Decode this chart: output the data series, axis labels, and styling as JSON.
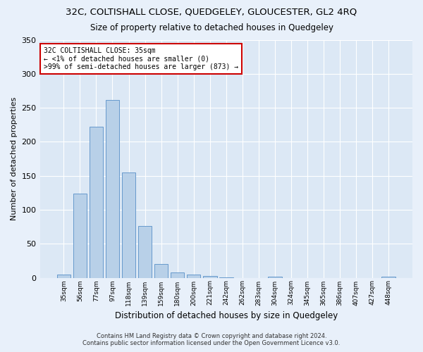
{
  "title": "32C, COLTISHALL CLOSE, QUEDGELEY, GLOUCESTER, GL2 4RQ",
  "subtitle": "Size of property relative to detached houses in Quedgeley",
  "xlabel": "Distribution of detached houses by size in Quedgeley",
  "ylabel": "Number of detached properties",
  "bar_color": "#b8d0e8",
  "bar_edge_color": "#6699cc",
  "background_color": "#dce8f5",
  "fig_background_color": "#e8f0fa",
  "grid_color": "#ffffff",
  "annotation_box_edgecolor": "#cc0000",
  "annotation_text_line1": "32C COLTISHALL CLOSE: 35sqm",
  "annotation_text_line2": "← <1% of detached houses are smaller (0)",
  "annotation_text_line3": ">99% of semi-detached houses are larger (873) →",
  "footnote1": "Contains HM Land Registry data © Crown copyright and database right 2024.",
  "footnote2": "Contains public sector information licensed under the Open Government Licence v3.0.",
  "bins": [
    "35sqm",
    "56sqm",
    "77sqm",
    "97sqm",
    "118sqm",
    "139sqm",
    "159sqm",
    "180sqm",
    "200sqm",
    "221sqm",
    "242sqm",
    "262sqm",
    "283sqm",
    "304sqm",
    "324sqm",
    "345sqm",
    "365sqm",
    "386sqm",
    "407sqm",
    "427sqm",
    "448sqm"
  ],
  "values": [
    5,
    124,
    222,
    261,
    155,
    76,
    20,
    8,
    5,
    3,
    1,
    0,
    0,
    2,
    0,
    0,
    0,
    0,
    0,
    0,
    2
  ],
  "ylim": [
    0,
    350
  ],
  "yticks": [
    0,
    50,
    100,
    150,
    200,
    250,
    300,
    350
  ]
}
